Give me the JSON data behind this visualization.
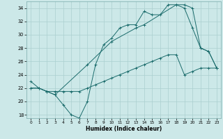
{
  "xlabel": "Humidex (Indice chaleur)",
  "bg_color": "#cce8e8",
  "grid_color": "#aacfcf",
  "line_color": "#1a6b6b",
  "xlim": [
    -0.5,
    23.5
  ],
  "ylim": [
    17.5,
    35
  ],
  "xticks": [
    0,
    1,
    2,
    3,
    4,
    5,
    6,
    7,
    8,
    9,
    10,
    11,
    12,
    13,
    14,
    15,
    16,
    17,
    18,
    19,
    20,
    21,
    22,
    23
  ],
  "yticks": [
    18,
    20,
    22,
    24,
    26,
    28,
    30,
    32,
    34
  ],
  "line1_x": [
    0,
    1,
    2,
    3,
    4,
    5,
    6,
    7,
    8,
    9,
    10,
    11,
    12,
    13,
    14,
    15,
    16,
    17,
    18,
    19,
    20,
    21,
    22,
    23
  ],
  "line1_y": [
    23,
    22,
    21.5,
    21,
    19.5,
    18,
    17.5,
    20,
    25.5,
    28.5,
    29.5,
    31,
    31.5,
    31.5,
    33.5,
    33,
    33,
    34.5,
    34.5,
    34.5,
    34,
    28,
    27.5,
    25
  ],
  "line2_x": [
    0,
    1,
    2,
    3,
    4,
    5,
    6,
    7,
    8,
    9,
    10,
    11,
    12,
    13,
    14,
    15,
    16,
    17,
    18,
    19,
    20,
    21,
    22,
    23
  ],
  "line2_y": [
    22,
    22,
    21.5,
    21.5,
    21.5,
    21.5,
    21.5,
    22,
    22.5,
    23,
    23.5,
    24,
    24.5,
    25,
    25.5,
    26,
    26.5,
    27,
    27,
    24,
    24.5,
    25,
    25,
    25
  ],
  "line3_x": [
    0,
    1,
    2,
    3,
    7,
    10,
    13,
    14,
    18,
    19,
    20,
    21,
    22,
    23
  ],
  "line3_y": [
    22,
    22,
    21.5,
    21,
    25.5,
    29,
    31,
    31.5,
    34.5,
    34,
    31,
    28,
    27.5,
    25
  ]
}
